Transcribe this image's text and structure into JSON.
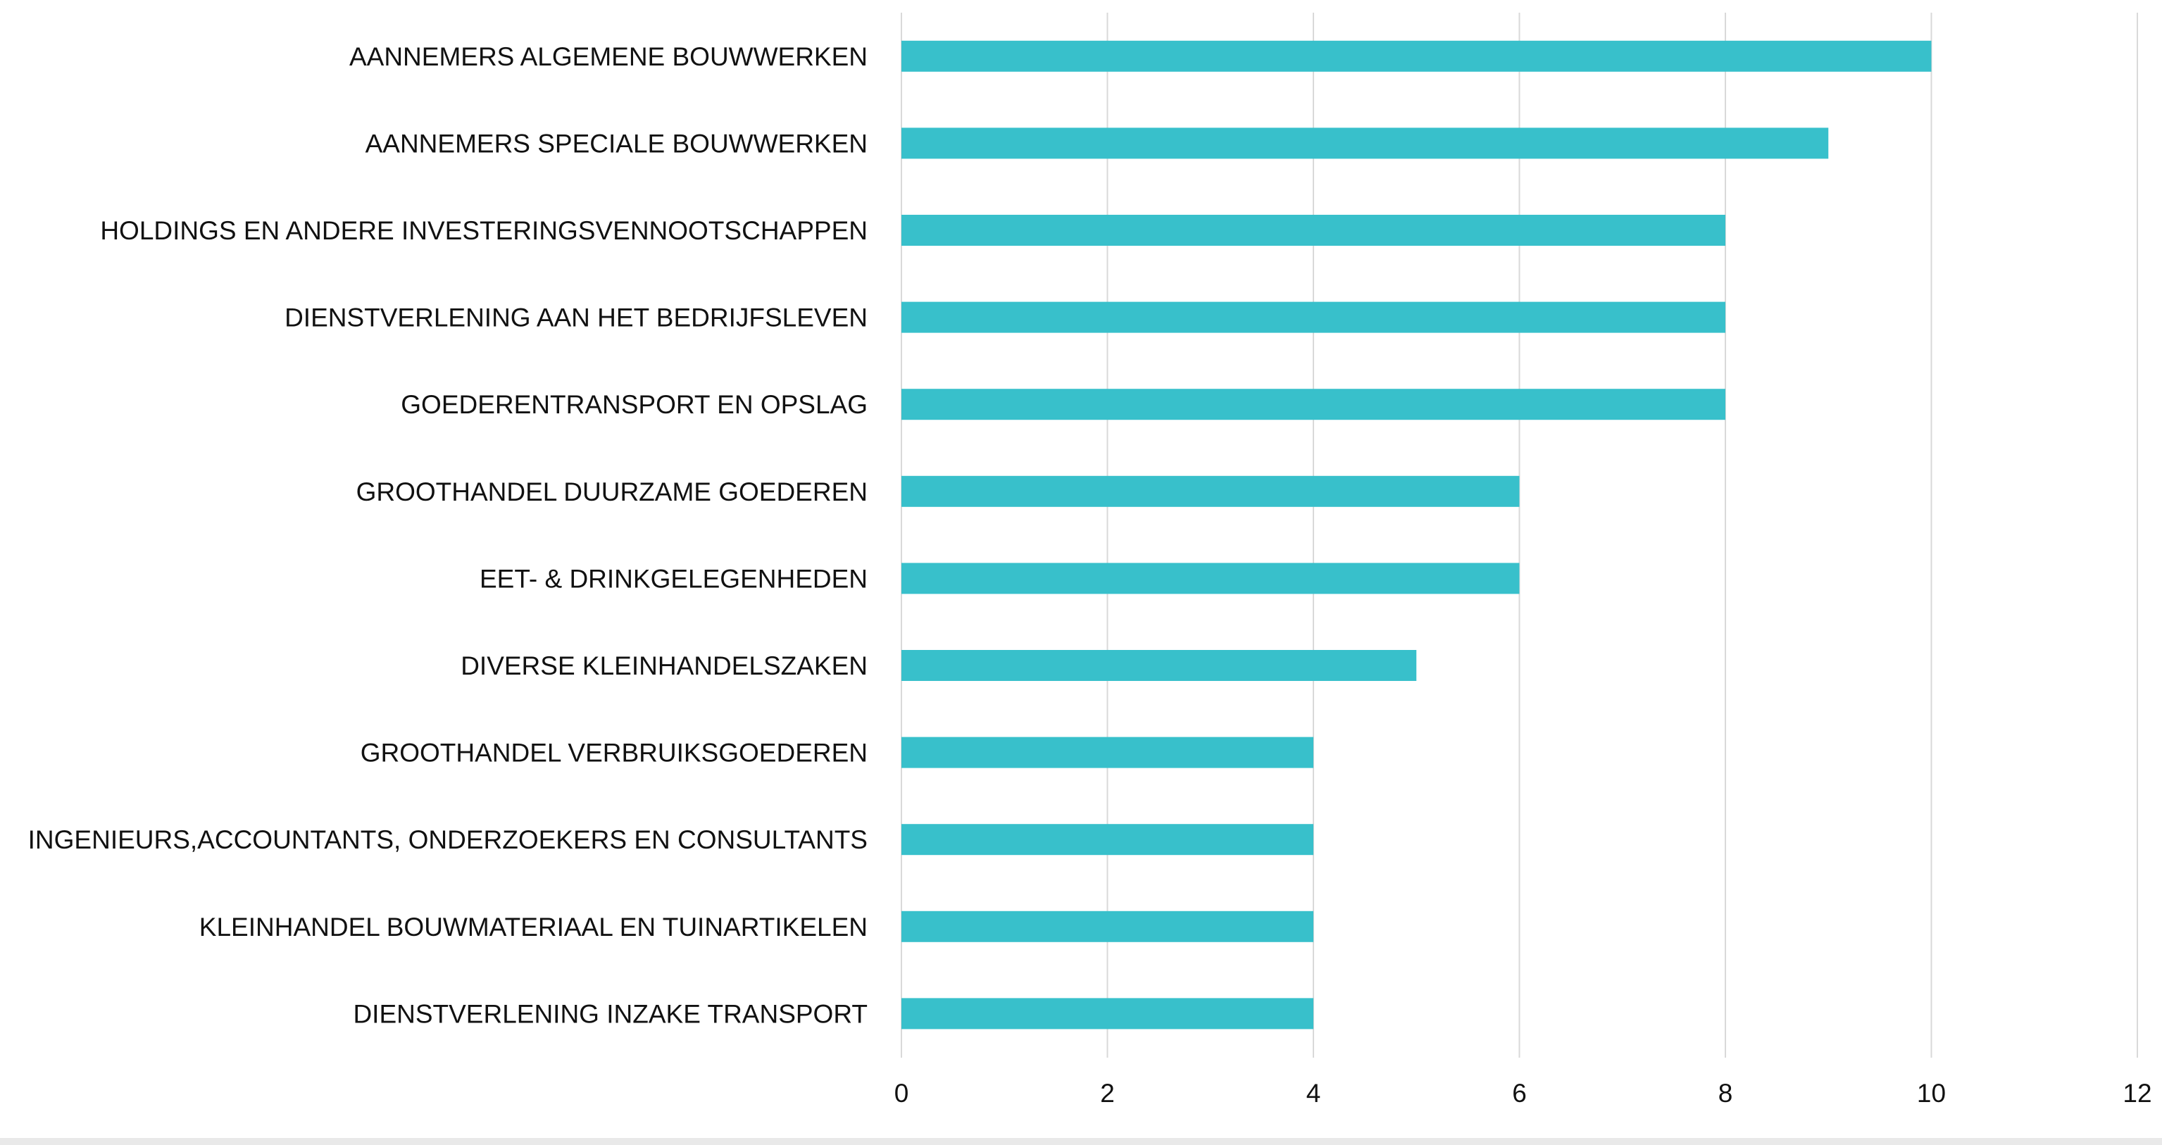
{
  "chart_data": {
    "type": "bar",
    "orientation": "horizontal",
    "categories": [
      "AANNEMERS ALGEMENE BOUWWERKEN",
      "AANNEMERS SPECIALE BOUWWERKEN",
      "HOLDINGS EN ANDERE INVESTERINGSVENNOOTSCHAPPEN",
      "DIENSTVERLENING AAN HET BEDRIJFSLEVEN",
      "GOEDERENTRANSPORT EN OPSLAG",
      "GROOTHANDEL DUURZAME GOEDEREN",
      "EET- & DRINKGELEGENHEDEN",
      "DIVERSE KLEINHANDELSZAKEN",
      "GROOTHANDEL VERBRUIKSGOEDEREN",
      "INGENIEURS,ACCOUNTANTS, ONDERZOEKERS EN CONSULTANTS",
      "KLEINHANDEL BOUWMATERIAAL EN TUINARTIKELEN",
      "DIENSTVERLENING INZAKE TRANSPORT"
    ],
    "values": [
      10,
      9,
      8,
      8,
      8,
      6,
      6,
      5,
      4,
      4,
      4,
      4
    ],
    "xlim": [
      0,
      12
    ],
    "xticks": [
      "0",
      "2",
      "4",
      "6",
      "8",
      "10",
      "12"
    ],
    "title": "",
    "xlabel": "",
    "ylabel": "",
    "grid": "vertical",
    "legend": "none",
    "colors": {
      "bar": "#38c0cb",
      "grid": "#d9d9d9",
      "text": "#111111"
    }
  }
}
